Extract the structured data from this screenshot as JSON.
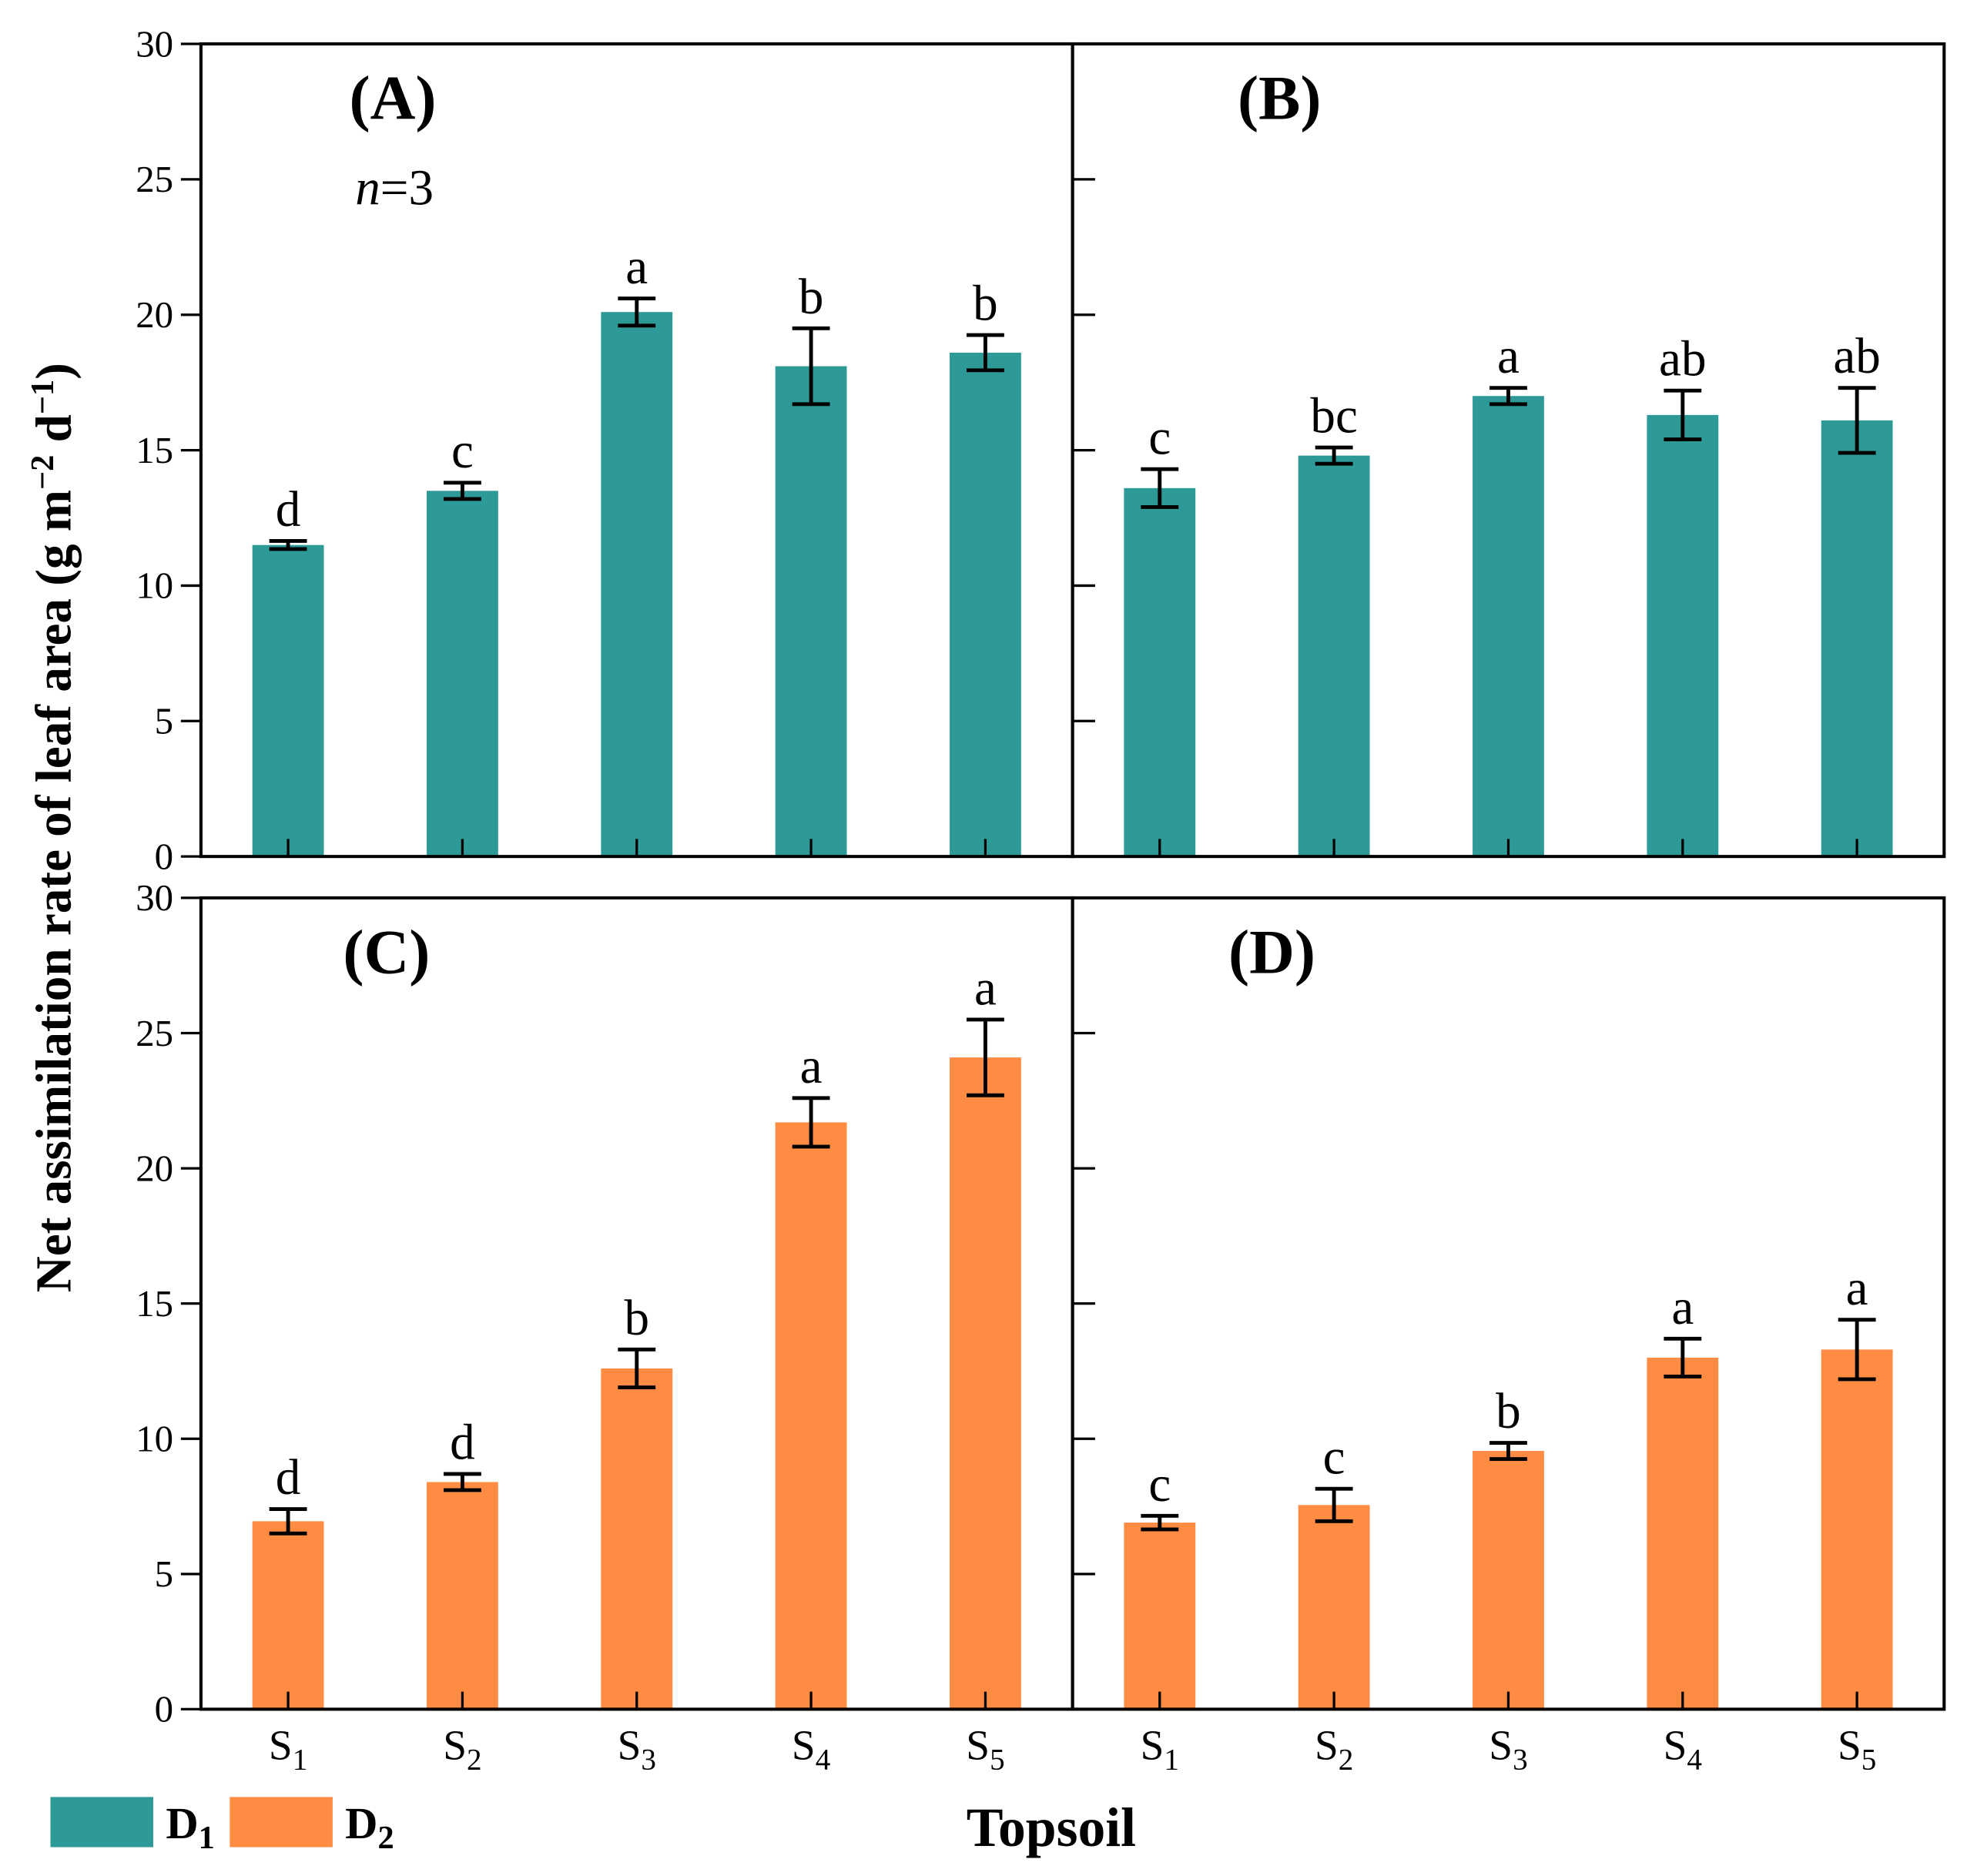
{
  "chart_data": {
    "type": "bar",
    "ylabel": "Net assimilation rate of leaf area (g m-2 d-1)",
    "ylabel_parts": {
      "main": "Net assimilation rate of  leaf area (g m",
      "sup1": "−2",
      "mid": " d",
      "sup2": "−1",
      "end": ")"
    },
    "xlabel": "Topsoil",
    "ylim": [
      0,
      30
    ],
    "yticks": [
      "0",
      "5",
      "10",
      "15",
      "20",
      "25",
      "30"
    ],
    "categories": [
      {
        "base": "S",
        "sub": "1"
      },
      {
        "base": "S",
        "sub": "2"
      },
      {
        "base": "S",
        "sub": "3"
      },
      {
        "base": "S",
        "sub": "4"
      },
      {
        "base": "S",
        "sub": "5"
      }
    ],
    "legend": {
      "position": "bottom-left",
      "items": [
        {
          "base": "D",
          "sub": "1",
          "color": "#2E9A98"
        },
        {
          "base": "D",
          "sub": "2",
          "color": "#FF8C42"
        }
      ]
    },
    "annotation": {
      "n_italic": "n",
      "n_rest": "=3"
    },
    "panels": [
      {
        "label": "(A)",
        "series": "D1",
        "color": "#2E9A98",
        "values": [
          11.5,
          13.5,
          20.1,
          18.1,
          18.6
        ],
        "errors": [
          0.15,
          0.3,
          0.5,
          1.4,
          0.65
        ],
        "letters": [
          "d",
          "c",
          "a",
          "b",
          "b"
        ]
      },
      {
        "label": "(B)",
        "series": "D1",
        "color": "#2E9A98",
        "values": [
          13.6,
          14.8,
          17.0,
          16.3,
          16.1
        ],
        "errors": [
          0.7,
          0.3,
          0.3,
          0.9,
          1.2
        ],
        "letters": [
          "c",
          "bc",
          "a",
          "ab",
          "ab"
        ]
      },
      {
        "label": "(C)",
        "series": "D2",
        "color": "#FF8C42",
        "values": [
          6.95,
          8.4,
          12.6,
          21.7,
          24.1
        ],
        "errors": [
          0.45,
          0.3,
          0.7,
          0.9,
          1.4
        ],
        "letters": [
          "d",
          "d",
          "b",
          "a",
          "a"
        ]
      },
      {
        "label": "(D)",
        "series": "D2",
        "color": "#FF8C42",
        "values": [
          6.9,
          7.55,
          9.55,
          13.0,
          13.3
        ],
        "errors": [
          0.25,
          0.6,
          0.3,
          0.7,
          1.1
        ],
        "letters": [
          "c",
          "c",
          "b",
          "a",
          "a"
        ]
      }
    ]
  }
}
